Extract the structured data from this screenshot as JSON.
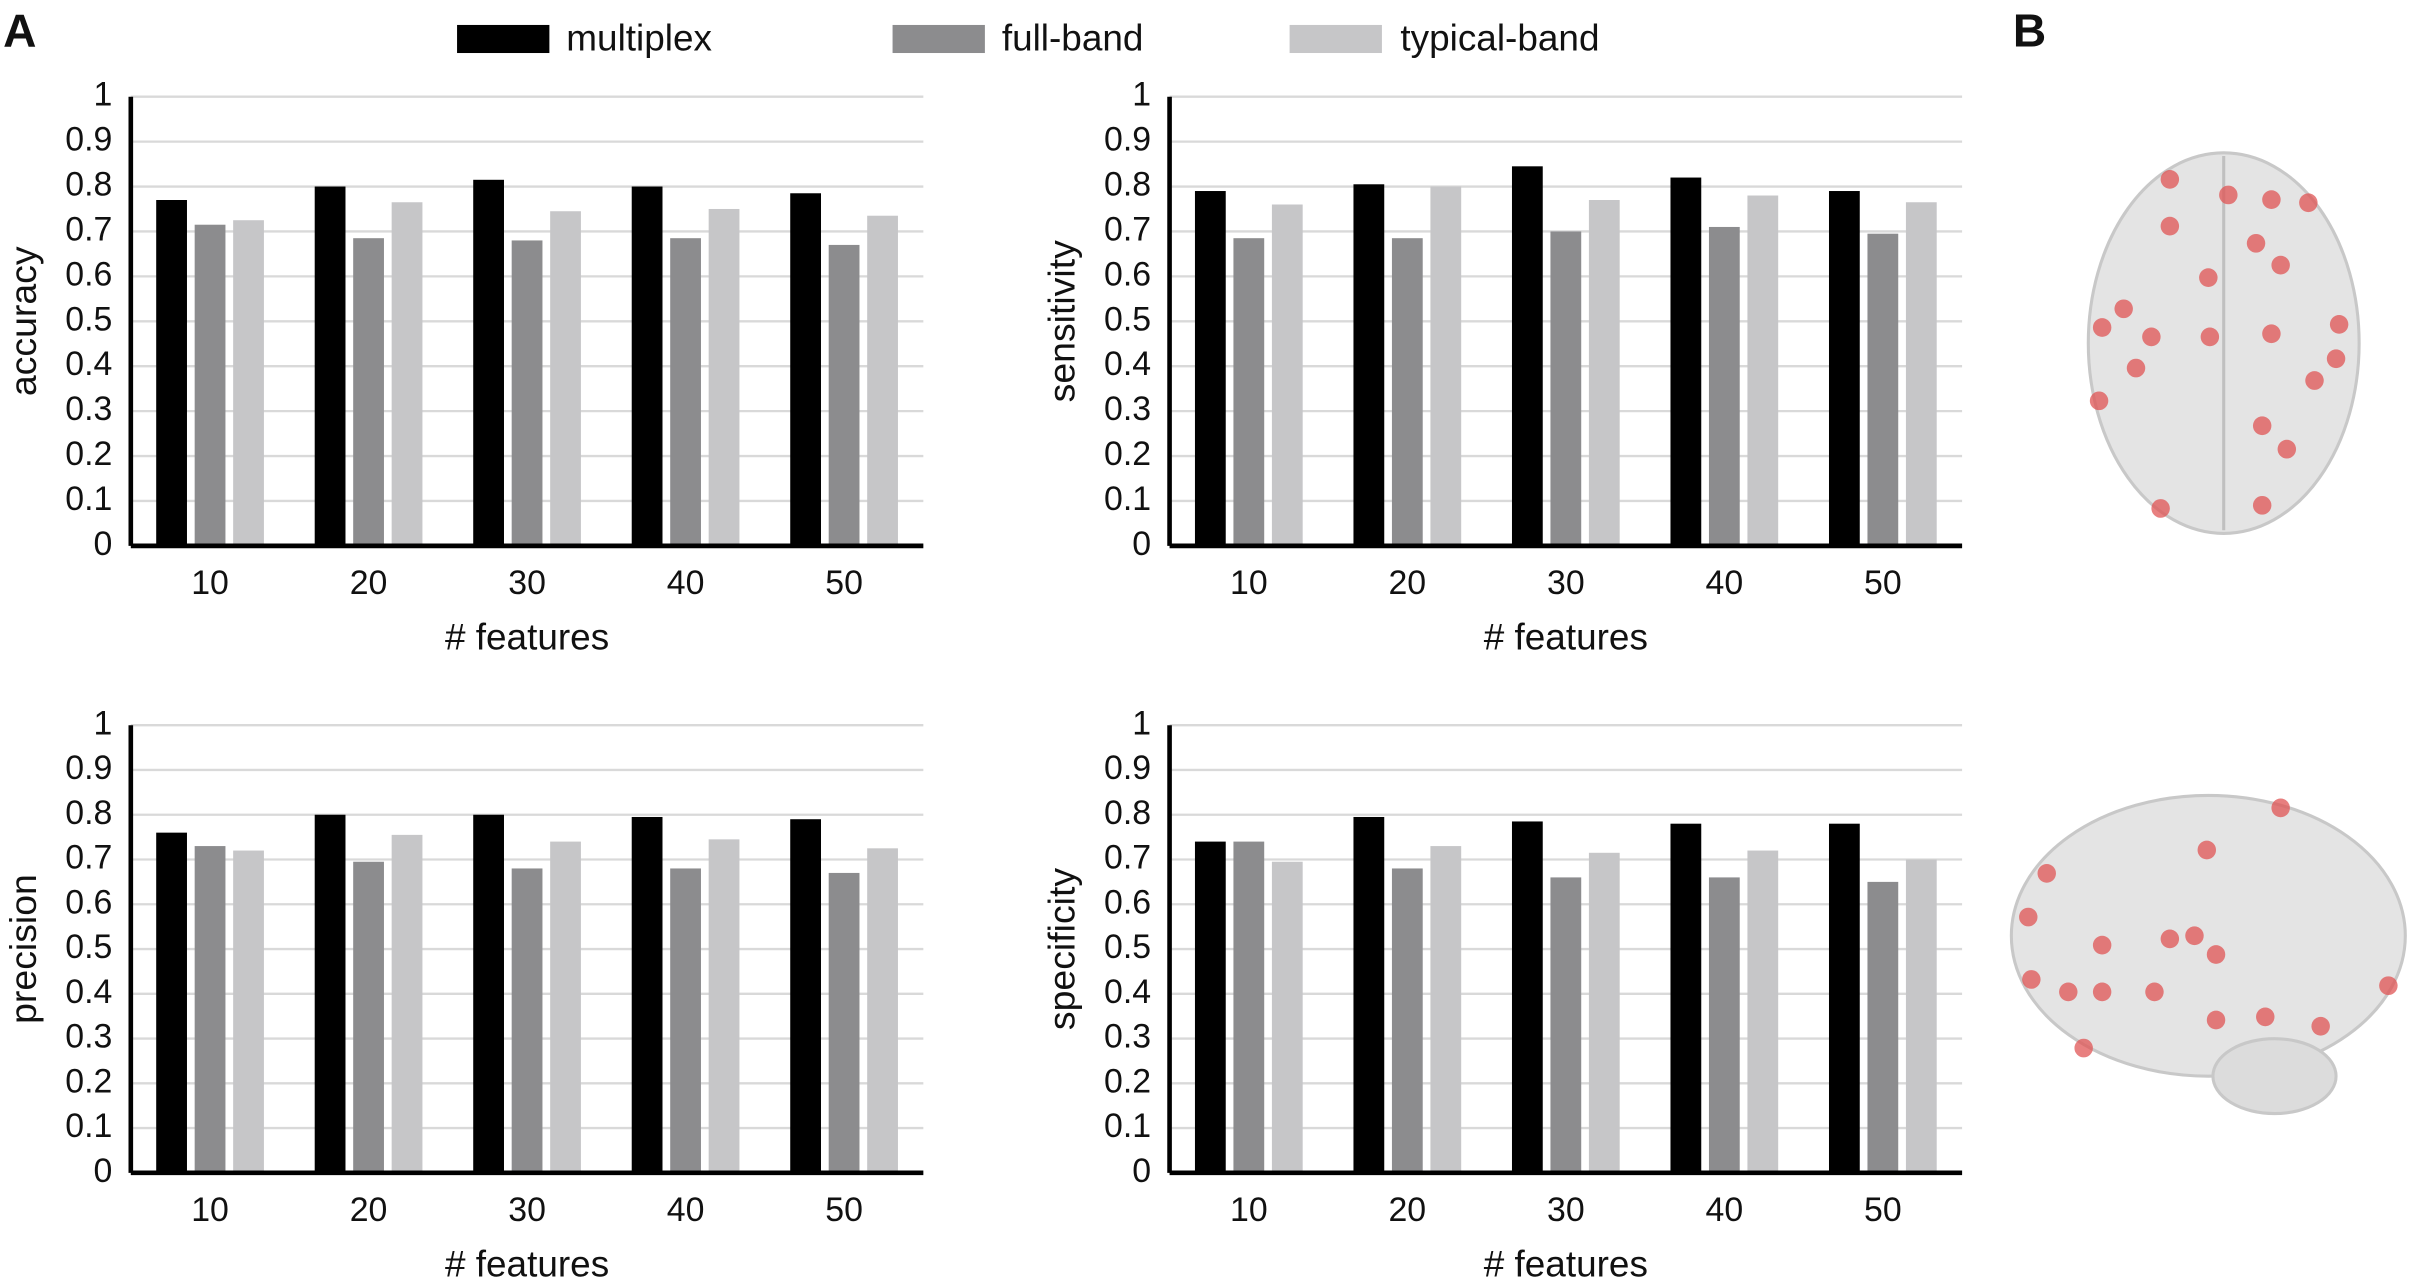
{
  "panel_labels": [
    "A",
    "B"
  ],
  "chart_data": [
    {
      "type": "bar",
      "ylabel": "accuracy",
      "xlabel": "# features",
      "categories": [
        "10",
        "20",
        "30",
        "40",
        "50"
      ],
      "series": [
        {
          "name": "multiplex",
          "color": "#000000",
          "values": [
            0.77,
            0.8,
            0.815,
            0.8,
            0.785
          ]
        },
        {
          "name": "full-band",
          "color": "#8c8c8e",
          "values": [
            0.715,
            0.685,
            0.68,
            0.685,
            0.67
          ]
        },
        {
          "name": "typical-band",
          "color": "#c6c6c8",
          "values": [
            0.725,
            0.765,
            0.745,
            0.75,
            0.735
          ]
        }
      ],
      "ylim": [
        0,
        1
      ],
      "yticks": [
        0,
        0.1,
        0.2,
        0.3,
        0.4,
        0.5,
        0.6,
        0.7,
        0.8,
        0.9,
        1
      ],
      "grid": true
    },
    {
      "type": "bar",
      "ylabel": "sensitivity",
      "xlabel": "# features",
      "categories": [
        "10",
        "20",
        "30",
        "40",
        "50"
      ],
      "series": [
        {
          "name": "multiplex",
          "color": "#000000",
          "values": [
            0.79,
            0.805,
            0.845,
            0.82,
            0.79
          ]
        },
        {
          "name": "full-band",
          "color": "#8c8c8e",
          "values": [
            0.685,
            0.685,
            0.7,
            0.71,
            0.695
          ]
        },
        {
          "name": "typical-band",
          "color": "#c6c6c8",
          "values": [
            0.76,
            0.8,
            0.77,
            0.78,
            0.765
          ]
        }
      ],
      "ylim": [
        0,
        1
      ],
      "yticks": [
        0,
        0.1,
        0.2,
        0.3,
        0.4,
        0.5,
        0.6,
        0.7,
        0.8,
        0.9,
        1
      ],
      "grid": true
    },
    {
      "type": "bar",
      "ylabel": "precision",
      "xlabel": "# features",
      "categories": [
        "10",
        "20",
        "30",
        "40",
        "50"
      ],
      "series": [
        {
          "name": "multiplex",
          "color": "#000000",
          "values": [
            0.76,
            0.8,
            0.8,
            0.795,
            0.79
          ]
        },
        {
          "name": "full-band",
          "color": "#8c8c8e",
          "values": [
            0.73,
            0.695,
            0.68,
            0.68,
            0.67
          ]
        },
        {
          "name": "typical-band",
          "color": "#c6c6c8",
          "values": [
            0.72,
            0.755,
            0.74,
            0.745,
            0.725
          ]
        }
      ],
      "ylim": [
        0,
        1
      ],
      "yticks": [
        0,
        0.1,
        0.2,
        0.3,
        0.4,
        0.5,
        0.6,
        0.7,
        0.8,
        0.9,
        1
      ],
      "grid": true
    },
    {
      "type": "bar",
      "ylabel": "specificity",
      "xlabel": "# features",
      "categories": [
        "10",
        "20",
        "30",
        "40",
        "50"
      ],
      "series": [
        {
          "name": "multiplex",
          "color": "#000000",
          "values": [
            0.74,
            0.795,
            0.785,
            0.78,
            0.78
          ]
        },
        {
          "name": "full-band",
          "color": "#8c8c8e",
          "values": [
            0.74,
            0.68,
            0.66,
            0.66,
            0.65
          ]
        },
        {
          "name": "typical-band",
          "color": "#c6c6c8",
          "values": [
            0.695,
            0.73,
            0.715,
            0.72,
            0.7
          ]
        }
      ],
      "ylim": [
        0,
        1
      ],
      "yticks": [
        0,
        0.1,
        0.2,
        0.3,
        0.4,
        0.5,
        0.6,
        0.7,
        0.8,
        0.9,
        1
      ],
      "grid": true
    }
  ]
}
